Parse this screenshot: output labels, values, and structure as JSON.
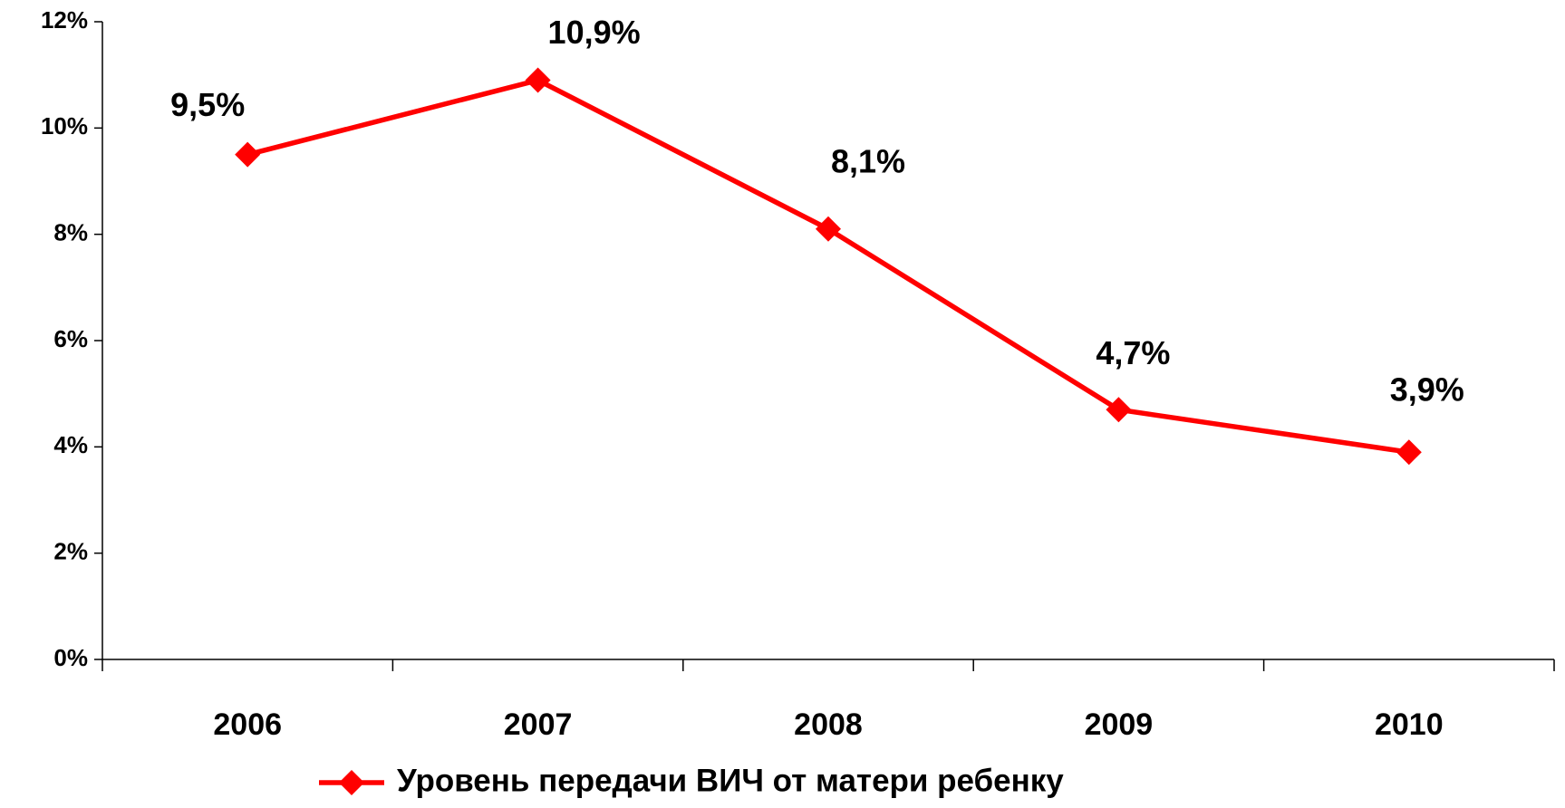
{
  "chart_data": {
    "type": "line",
    "categories": [
      "2006",
      "2007",
      "2008",
      "2009",
      "2010"
    ],
    "series": [
      {
        "name": "Уровень передачи ВИЧ от матери ребенку",
        "color": "#ff0000",
        "values": [
          9.5,
          10.9,
          8.1,
          4.7,
          3.9
        ],
        "value_labels": [
          "9,5%",
          "10,9%",
          "8,1%",
          "4,7%",
          "3,9%"
        ]
      }
    ],
    "ylim": [
      0,
      12
    ],
    "yticks": [
      {
        "value": 0,
        "label": "0%"
      },
      {
        "value": 2,
        "label": "2%"
      },
      {
        "value": 4,
        "label": "4%"
      },
      {
        "value": 6,
        "label": "6%"
      },
      {
        "value": 8,
        "label": "8%"
      },
      {
        "value": 10,
        "label": "10%"
      },
      {
        "value": 12,
        "label": "12%"
      }
    ],
    "grid": false,
    "legend": "bottom"
  }
}
